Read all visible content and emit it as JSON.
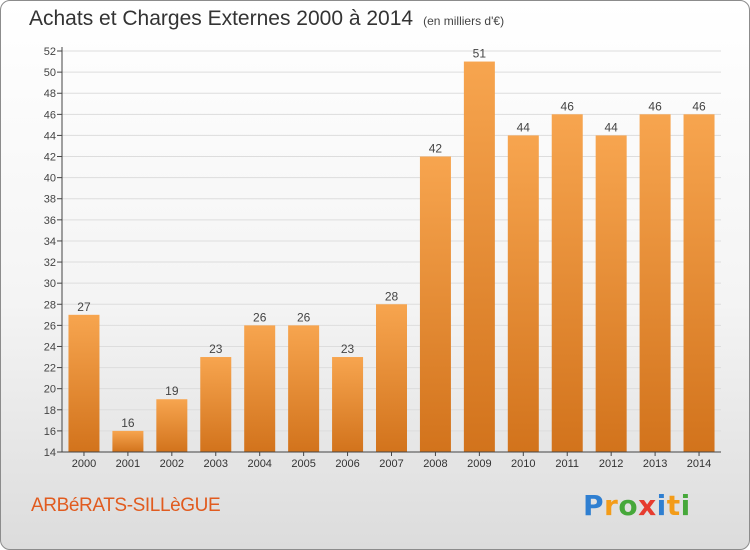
{
  "title": "Achats et Charges Externes 2000 à 2014",
  "subtitle": "(en milliers d'€)",
  "place": "ARBéRATS-SILLèGUE",
  "logo": {
    "letters": [
      {
        "ch": "P",
        "color": "#2f7fd1"
      },
      {
        "ch": "r",
        "color": "#f39c19"
      },
      {
        "ch": "o",
        "color": "#46a83a"
      },
      {
        "ch": "x",
        "color": "#e63c2f"
      },
      {
        "ch": "i",
        "color": "#2f7fd1"
      },
      {
        "ch": "t",
        "color": "#f39c19"
      },
      {
        "ch": "i",
        "color": "#46a83a"
      }
    ]
  },
  "colors": {
    "bar_light": "#f7a54f",
    "bar_dark": "#d2731c",
    "axis": "#444444",
    "grid": "#dddddd"
  },
  "chart_data": {
    "type": "bar",
    "categories": [
      "2000",
      "2001",
      "2002",
      "2003",
      "2004",
      "2005",
      "2006",
      "2007",
      "2008",
      "2009",
      "2010",
      "2011",
      "2012",
      "2013",
      "2014"
    ],
    "values": [
      27,
      16,
      19,
      23,
      26,
      26,
      23,
      28,
      42,
      51,
      44,
      46,
      44,
      46,
      46
    ],
    "ylim": [
      14,
      52
    ],
    "ytick_step": 2,
    "grid": true,
    "data_labels": true
  }
}
